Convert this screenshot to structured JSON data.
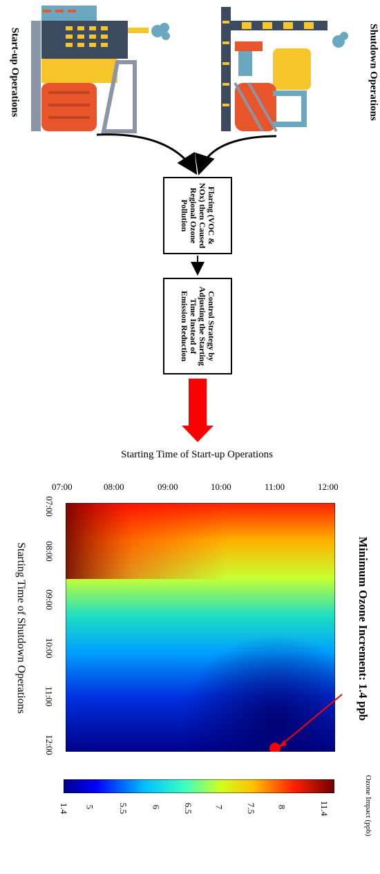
{
  "labels": {
    "startup": "Start-up Operations",
    "shutdown": "Shutdown Operations"
  },
  "flow": {
    "box1": "Flaring (VOC & NOx) then Caused Regional Ozone Pollution",
    "box2": "Control Strategy by Adjusting the Starting Time Instead of Emission Reduction"
  },
  "chart_data": {
    "type": "heatmap",
    "title": "Minimum Ozone Increment: 1.4 ppb",
    "xlabel": "Starting Time of Start-up Operations",
    "ylabel": "Starting Time of Shutdown Operations",
    "startup_ticks": [
      "07:00",
      "08:00",
      "09:00",
      "10:00",
      "11:00",
      "12:00"
    ],
    "shutdown_ticks": [
      "07:00",
      "08:00",
      "09:00",
      "10:00",
      "11:00",
      "12:00"
    ],
    "colorbar_label": "Ozone Impact (ppb)",
    "colorbar_ticks": [
      "1.4",
      "5",
      "5.5",
      "6",
      "6.5",
      "7",
      "7.5",
      "8",
      "11.4"
    ],
    "min_point": {
      "startup": "11:00",
      "shutdown": "12:00",
      "value": 1.4
    },
    "max_value": 11.4,
    "colormap": "jet"
  }
}
